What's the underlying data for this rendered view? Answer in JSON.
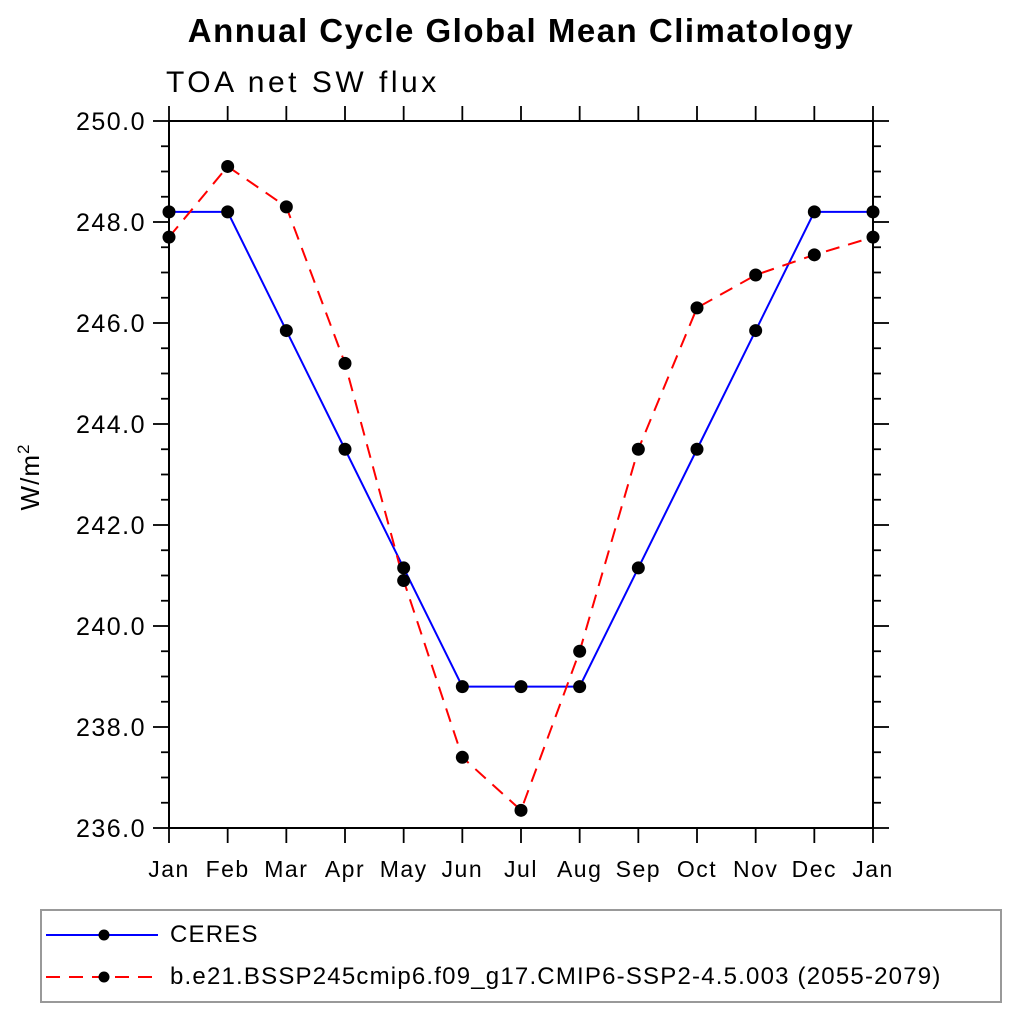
{
  "title": "Annual Cycle Global Mean Climatology",
  "subtitle": "TOA net SW flux",
  "y_axis_label": {
    "base": "W/m",
    "exponent": "2"
  },
  "legend": {
    "position": "bottom-left-box",
    "border_color": "#999999"
  },
  "chart_data": {
    "type": "line",
    "title": "Annual Cycle Global Mean Climatology",
    "subtitle": "TOA net SW flux",
    "xlabel": "",
    "ylabel": "W/m2",
    "categories": [
      "Jan",
      "Feb",
      "Mar",
      "Apr",
      "May",
      "Jun",
      "Jul",
      "Aug",
      "Sep",
      "Oct",
      "Nov",
      "Dec",
      "Jan"
    ],
    "series": [
      {
        "name": "CERES",
        "color": "#0000ff",
        "line_style": "solid",
        "marker": "circle",
        "marker_color": "#000000",
        "values": [
          248.2,
          248.2,
          245.85,
          243.5,
          241.15,
          238.8,
          238.8,
          238.8,
          241.15,
          243.5,
          245.85,
          248.2,
          248.2
        ]
      },
      {
        "name": "b.e21.BSSP245cmip6.f09_g17.CMIP6-SSP2-4.5.003 (2055-2079)",
        "color": "#ff0000",
        "line_style": "dashed",
        "marker": "circle",
        "marker_color": "#000000",
        "values": [
          247.7,
          249.1,
          248.3,
          245.2,
          240.9,
          237.4,
          236.35,
          239.5,
          243.5,
          246.3,
          246.95,
          247.35,
          247.7
        ]
      }
    ],
    "ylim": [
      236.0,
      250.0
    ],
    "ytick_step": 2.0,
    "ytick_minor_step": 0.5,
    "ytick_labels": [
      "250.0",
      "248.0",
      "246.0",
      "244.0",
      "242.0",
      "240.0",
      "238.0",
      "236.0"
    ],
    "grid": false,
    "axis_color": "#000000",
    "legend_position": "bottom-left"
  }
}
